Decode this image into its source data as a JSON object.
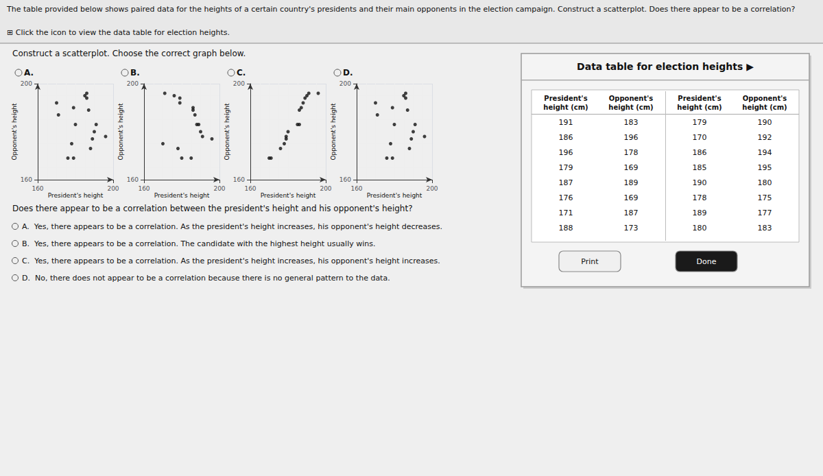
{
  "title": "The table provided below shows paired data for the heights of a certain country's presidents and their main opponents in the election campaign. Construct a scatterplot. Does there appear to be a correlation?",
  "subtitle": "⊞ Click the icon to view the data table for election heights.",
  "annotations": [
    "Construct a scatterplot. Choose the correct graph below.",
    "Does there appear to be a correlation between the president's height and his opponent's height?",
    "A.  Yes, there appears to be a correlation. As the president's height increases, his opponent's height decreases.",
    "B.  Yes, there appears to be a correlation. The candidate with the highest height usually wins.",
    "C.  Yes, there appears to be a correlation. As the president's height increases, his opponent's height increases.",
    "D.  No, there does not appear to be a correlation because there is no general pattern to the data."
  ],
  "chart_data": [
    {
      "type": "scatter",
      "title": "A.",
      "xlabel": "President's height",
      "ylabel": "Opponent's height",
      "x": [
        191,
        186,
        196,
        179,
        187,
        176,
        171,
        188,
        179,
        170,
        186,
        185,
        190,
        178,
        189,
        180
      ],
      "values": [
        183,
        196,
        178,
        169,
        189,
        169,
        187,
        173,
        190,
        192,
        194,
        195,
        180,
        175,
        177,
        183
      ],
      "color": "#111111",
      "xlim": [
        160,
        200
      ],
      "ylim": [
        160,
        200
      ],
      "xticks": [
        160,
        200
      ],
      "yticks": [
        160,
        200
      ],
      "grid": true
    },
    {
      "type": "scatter",
      "title": "B.",
      "xlabel": "President's height",
      "ylabel": "Opponent's height",
      "x": [
        171,
        176,
        179,
        179,
        186,
        186,
        187,
        188,
        189,
        190,
        191,
        196,
        170,
        178,
        180,
        185
      ],
      "values": [
        196,
        195,
        194,
        192,
        190,
        189,
        187,
        183,
        183,
        180,
        178,
        177,
        175,
        173,
        169,
        169
      ],
      "color": "#111111",
      "xlim": [
        160,
        200
      ],
      "ylim": [
        160,
        200
      ],
      "xticks": [
        160,
        200
      ],
      "yticks": [
        160,
        200
      ],
      "grid": true
    },
    {
      "type": "scatter",
      "title": "C.",
      "xlabel": "President's height",
      "ylabel": "Opponent's height",
      "x": [
        170,
        171,
        176,
        178,
        179,
        179,
        180,
        185,
        186,
        186,
        187,
        188,
        189,
        190,
        191,
        196
      ],
      "values": [
        169,
        169,
        173,
        175,
        177,
        178,
        180,
        183,
        183,
        189,
        190,
        192,
        194,
        195,
        196,
        196
      ],
      "color": "#111111",
      "xlim": [
        160,
        200
      ],
      "ylim": [
        160,
        200
      ],
      "xticks": [
        160,
        200
      ],
      "yticks": [
        160,
        200
      ],
      "grid": true
    },
    {
      "type": "scatter",
      "title": "D.",
      "xlabel": "President's height",
      "ylabel": "Opponent's height",
      "x": [
        191,
        186,
        196,
        179,
        187,
        176,
        171,
        188,
        179,
        170,
        186,
        185,
        190,
        178,
        189,
        180
      ],
      "values": [
        183,
        196,
        178,
        169,
        189,
        169,
        187,
        173,
        190,
        192,
        194,
        195,
        180,
        175,
        177,
        183
      ],
      "color": "#111111",
      "xlim": [
        160,
        200
      ],
      "ylim": [
        160,
        200
      ],
      "xticks": [
        160,
        200
      ],
      "yticks": [
        160,
        200
      ],
      "grid": true
    }
  ],
  "table": {
    "title": "Data table for election heights ▶",
    "columns": [
      "President's\nheight (cm)",
      "Opponent's\nheight (cm)",
      "President's\nheight (cm)",
      "Opponent's\nheight (cm)"
    ],
    "rows": [
      [
        191,
        183,
        179,
        190
      ],
      [
        186,
        196,
        170,
        192
      ],
      [
        196,
        178,
        186,
        194
      ],
      [
        179,
        169,
        185,
        195
      ],
      [
        187,
        189,
        190,
        180
      ],
      [
        176,
        169,
        178,
        175
      ],
      [
        171,
        187,
        189,
        177
      ],
      [
        188,
        173,
        180,
        183
      ]
    ],
    "buttons": [
      "Print",
      "Done"
    ]
  }
}
